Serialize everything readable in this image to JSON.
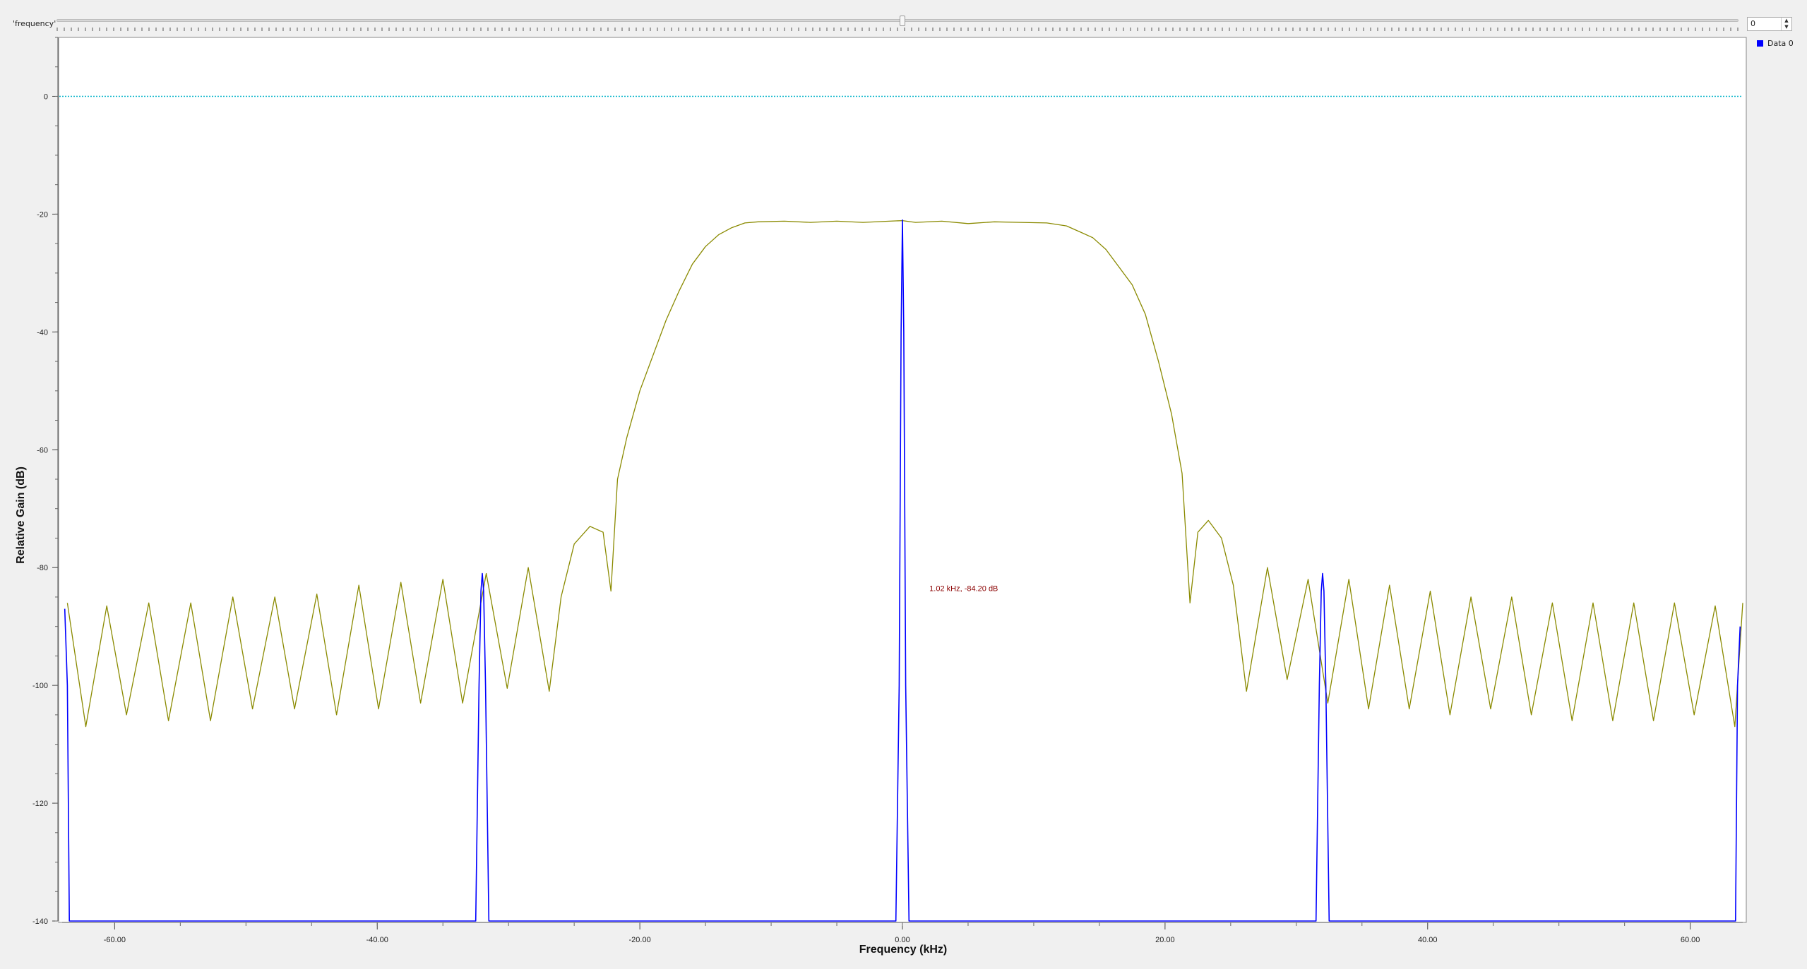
{
  "controls": {
    "slider_label": "'frequency'",
    "spin_value": "0"
  },
  "colors": {
    "filter_curve": "#8a8a00",
    "data0": "#0000ff",
    "reference_line": "#00b3c8",
    "marker_text": "#8b0000"
  },
  "chart_data": {
    "type": "line",
    "xlabel": "Frequency (kHz)",
    "ylabel": "Relative Gain (dB)",
    "xlim": [
      -64,
      64
    ],
    "ylim": [
      -140,
      10
    ],
    "xticks": [
      -60,
      -40,
      -20,
      0,
      20,
      40,
      60
    ],
    "xtick_labels": [
      "-60.00",
      "-40.00",
      "-20.00",
      "0.00",
      "20.00",
      "40.00",
      "60.00"
    ],
    "yticks": [
      0,
      -20,
      -40,
      -60,
      -80,
      -100,
      -120,
      -140
    ],
    "ytick_labels": [
      "0",
      "-20",
      "-40",
      "-60",
      "-80",
      "-100",
      "-120",
      "-140"
    ],
    "reference_line": 0,
    "grid": false,
    "legend": {
      "position": "top-right",
      "entries": [
        "Data 0"
      ]
    },
    "marker_label": {
      "text": "1.02 kHz, -84.20 dB",
      "x": 1.3,
      "y": -84
    },
    "series": [
      {
        "name": "Data 0",
        "color": "#0000ff",
        "points": [
          [
            -63.8,
            -87
          ],
          [
            -63.6,
            -100
          ],
          [
            -63.45,
            -140
          ],
          [
            -32.5,
            -140
          ],
          [
            -32.25,
            -100
          ],
          [
            -32.1,
            -84
          ],
          [
            -32.0,
            -81
          ],
          [
            -31.9,
            -84
          ],
          [
            -31.75,
            -100
          ],
          [
            -31.5,
            -140
          ],
          [
            -0.5,
            -140
          ],
          [
            -0.25,
            -100
          ],
          [
            -0.1,
            -40
          ],
          [
            0.0,
            -21
          ],
          [
            0.1,
            -40
          ],
          [
            0.25,
            -100
          ],
          [
            0.5,
            -140
          ],
          [
            31.5,
            -140
          ],
          [
            31.75,
            -100
          ],
          [
            31.9,
            -84
          ],
          [
            32.0,
            -81
          ],
          [
            32.1,
            -84
          ],
          [
            32.25,
            -100
          ],
          [
            32.5,
            -140
          ],
          [
            63.45,
            -140
          ],
          [
            63.6,
            -100
          ],
          [
            63.8,
            -90
          ]
        ]
      },
      {
        "color": "#8a8a00",
        "points": [
          [
            -63.6,
            -86
          ],
          [
            -62.2,
            -107
          ],
          [
            -60.6,
            -86.5
          ],
          [
            -59.1,
            -105
          ],
          [
            -57.4,
            -86
          ],
          [
            -55.9,
            -106
          ],
          [
            -54.2,
            -86
          ],
          [
            -52.7,
            -106
          ],
          [
            -51.0,
            -85
          ],
          [
            -49.5,
            -104
          ],
          [
            -47.8,
            -85
          ],
          [
            -46.3,
            -104
          ],
          [
            -44.6,
            -84.5
          ],
          [
            -43.1,
            -105
          ],
          [
            -41.4,
            -83
          ],
          [
            -39.9,
            -104
          ],
          [
            -38.2,
            -82.5
          ],
          [
            -36.7,
            -103
          ],
          [
            -35.0,
            -82
          ],
          [
            -33.5,
            -103
          ],
          [
            -31.7,
            -81
          ],
          [
            -30.1,
            -100.5
          ],
          [
            -28.5,
            -80
          ],
          [
            -26.9,
            -101
          ],
          [
            -26.0,
            -85
          ],
          [
            -25.0,
            -76
          ],
          [
            -23.8,
            -73
          ],
          [
            -22.8,
            -74
          ],
          [
            -22.2,
            -84
          ],
          [
            -21.7,
            -65
          ],
          [
            -21.0,
            -58
          ],
          [
            -20.0,
            -50
          ],
          [
            -19.0,
            -44
          ],
          [
            -18.0,
            -38
          ],
          [
            -17.0,
            -33
          ],
          [
            -16.0,
            -28.5
          ],
          [
            -15.0,
            -25.5
          ],
          [
            -14.0,
            -23.5
          ],
          [
            -13.0,
            -22.3
          ],
          [
            -12.0,
            -21.5
          ],
          [
            -11.0,
            -21.3
          ],
          [
            -9.0,
            -21.2
          ],
          [
            -7.0,
            -21.4
          ],
          [
            -5.0,
            -21.2
          ],
          [
            -3.0,
            -21.4
          ],
          [
            -1.0,
            -21.2
          ],
          [
            0.0,
            -21.1
          ],
          [
            1.0,
            -21.4
          ],
          [
            3.0,
            -21.2
          ],
          [
            5.0,
            -21.6
          ],
          [
            7.0,
            -21.3
          ],
          [
            9.0,
            -21.4
          ],
          [
            11.0,
            -21.5
          ],
          [
            12.5,
            -22.0
          ],
          [
            13.5,
            -23
          ],
          [
            14.5,
            -24
          ],
          [
            15.5,
            -26
          ],
          [
            16.5,
            -29
          ],
          [
            17.5,
            -32
          ],
          [
            18.5,
            -37
          ],
          [
            19.5,
            -45
          ],
          [
            20.5,
            -54
          ],
          [
            21.3,
            -64
          ],
          [
            21.9,
            -86
          ],
          [
            22.5,
            -74
          ],
          [
            23.3,
            -72
          ],
          [
            24.3,
            -75
          ],
          [
            25.2,
            -83
          ],
          [
            26.2,
            -101
          ],
          [
            27.8,
            -80
          ],
          [
            29.3,
            -99
          ],
          [
            30.9,
            -82
          ],
          [
            32.4,
            -103
          ],
          [
            34.0,
            -82
          ],
          [
            35.5,
            -104
          ],
          [
            37.1,
            -83
          ],
          [
            38.6,
            -104
          ],
          [
            40.2,
            -84
          ],
          [
            41.7,
            -105
          ],
          [
            43.3,
            -85
          ],
          [
            44.8,
            -104
          ],
          [
            46.4,
            -85
          ],
          [
            47.9,
            -105
          ],
          [
            49.5,
            -86
          ],
          [
            51.0,
            -106
          ],
          [
            52.6,
            -86
          ],
          [
            54.1,
            -106
          ],
          [
            55.7,
            -86
          ],
          [
            57.2,
            -106
          ],
          [
            58.8,
            -86
          ],
          [
            60.3,
            -105
          ],
          [
            61.9,
            -86.5
          ],
          [
            63.4,
            -107
          ],
          [
            64.0,
            -86
          ]
        ]
      }
    ]
  }
}
